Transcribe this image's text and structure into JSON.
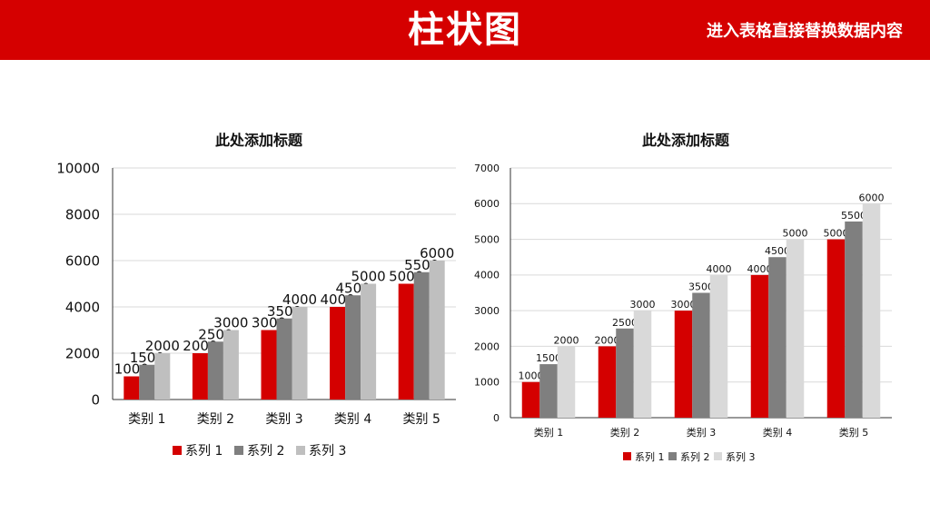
{
  "header": {
    "title": "柱状图",
    "subtitle": "进入表格直接替换数据内容"
  },
  "colors": {
    "header_bg": "#d50000",
    "header_text": "#ffffff",
    "series": [
      "#d40000",
      "#7f7f7f",
      "#bfbfbf"
    ],
    "series_right": [
      "#d40000",
      "#7f7f7f",
      "#d9d9d9"
    ]
  },
  "chart_data": [
    {
      "type": "bar",
      "title": "此处添加标题",
      "categories": [
        "类别 1",
        "类别 2",
        "类别 3",
        "类别 4",
        "类别 5"
      ],
      "series": [
        {
          "name": "系列 1",
          "values": [
            1000,
            2000,
            3000,
            4000,
            5000
          ]
        },
        {
          "name": "系列 2",
          "values": [
            1500,
            2500,
            3500,
            4500,
            5500
          ]
        },
        {
          "name": "系列 3",
          "values": [
            2000,
            3000,
            4000,
            5000,
            6000
          ]
        }
      ],
      "ylim": [
        0,
        10000
      ],
      "yticks": [
        0,
        2000,
        4000,
        6000,
        8000,
        10000
      ],
      "grid": true,
      "data_labels": true,
      "legend": "bottom"
    },
    {
      "type": "bar",
      "title": "此处添加标题",
      "categories": [
        "类别 1",
        "类别 2",
        "类别 3",
        "类别 4",
        "类别 5"
      ],
      "series": [
        {
          "name": "系列 1",
          "values": [
            1000,
            2000,
            3000,
            4000,
            5000
          ]
        },
        {
          "name": "系列 2",
          "values": [
            1500,
            2500,
            3500,
            4500,
            5500
          ]
        },
        {
          "name": "系列 3",
          "values": [
            2000,
            3000,
            4000,
            5000,
            6000
          ]
        }
      ],
      "ylim": [
        0,
        7000
      ],
      "yticks": [
        0,
        1000,
        2000,
        3000,
        4000,
        5000,
        6000,
        7000
      ],
      "grid": true,
      "data_labels": true,
      "legend": "bottom"
    }
  ]
}
